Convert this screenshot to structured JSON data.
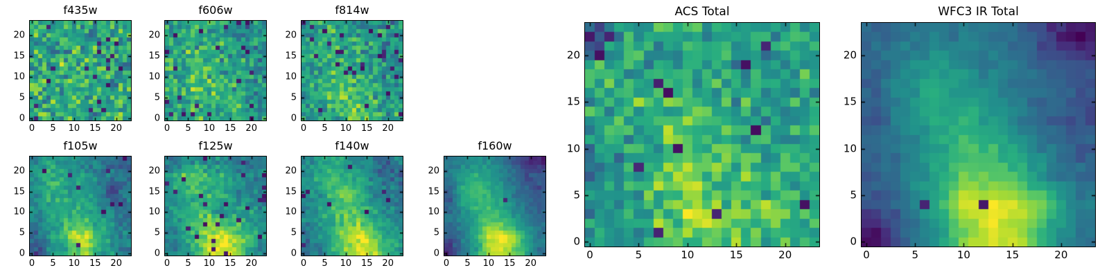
{
  "figure": {
    "background": "#ffffff",
    "description": "Matplotlib-style cutout mosaic of one source in 7 HST bands plus two stacked totals, viridis colormap"
  },
  "colormap": {
    "name": "viridis",
    "stops": [
      "#440154",
      "#472d7b",
      "#3b528b",
      "#2c728e",
      "#21918c",
      "#28ae80",
      "#5ec962",
      "#addc30",
      "#fde725"
    ]
  },
  "axes_style": {
    "frame_color": "#000000",
    "tick_color": "#000000",
    "ticks_direction": "in"
  },
  "chart_data": [
    {
      "id": "f435w",
      "type": "heatmap",
      "title": "f435w",
      "xticks": [
        0,
        5,
        10,
        15,
        20
      ],
      "yticks": [
        0,
        5,
        10,
        15,
        20
      ],
      "render_resolution": 24,
      "value_range": [
        0,
        1
      ],
      "noise_sigma": 0.17,
      "dark_outlier_prob": 0.035,
      "seed": 11,
      "intensity_grid_8x8_top_to_bottom": [
        [
          0.62,
          0.58,
          0.65,
          0.6,
          0.55,
          0.63,
          0.58,
          0.6
        ],
        [
          0.58,
          0.66,
          0.6,
          0.57,
          0.62,
          0.55,
          0.65,
          0.58
        ],
        [
          0.64,
          0.6,
          0.55,
          0.68,
          0.58,
          0.62,
          0.56,
          0.63
        ],
        [
          0.6,
          0.55,
          0.66,
          0.6,
          0.64,
          0.57,
          0.6,
          0.55
        ],
        [
          0.57,
          0.63,
          0.58,
          0.65,
          0.55,
          0.6,
          0.66,
          0.58
        ],
        [
          0.65,
          0.58,
          0.62,
          0.55,
          0.68,
          0.58,
          0.55,
          0.62
        ],
        [
          0.58,
          0.64,
          0.56,
          0.62,
          0.58,
          0.65,
          0.6,
          0.57
        ],
        [
          0.62,
          0.57,
          0.65,
          0.58,
          0.62,
          0.55,
          0.63,
          0.6
        ]
      ]
    },
    {
      "id": "f606w",
      "type": "heatmap",
      "title": "f606w",
      "xticks": [
        0,
        5,
        10,
        15,
        20
      ],
      "yticks": [
        0,
        5,
        10,
        15,
        20
      ],
      "render_resolution": 24,
      "value_range": [
        0,
        1
      ],
      "noise_sigma": 0.15,
      "dark_outlier_prob": 0.03,
      "seed": 23,
      "intensity_grid_8x8_top_to_bottom": [
        [
          0.6,
          0.55,
          0.62,
          0.58,
          0.6,
          0.5,
          0.45,
          0.55
        ],
        [
          0.62,
          0.68,
          0.58,
          0.55,
          0.6,
          0.52,
          0.48,
          0.58
        ],
        [
          0.58,
          0.65,
          0.6,
          0.62,
          0.55,
          0.58,
          0.5,
          0.45
        ],
        [
          0.6,
          0.58,
          0.65,
          0.6,
          0.62,
          0.55,
          0.58,
          0.52
        ],
        [
          0.55,
          0.62,
          0.68,
          0.65,
          0.6,
          0.62,
          0.55,
          0.5
        ],
        [
          0.6,
          0.65,
          0.7,
          0.72,
          0.65,
          0.6,
          0.58,
          0.55
        ],
        [
          0.58,
          0.62,
          0.68,
          0.7,
          0.68,
          0.62,
          0.55,
          0.52
        ],
        [
          0.6,
          0.58,
          0.65,
          0.68,
          0.62,
          0.58,
          0.6,
          0.55
        ]
      ]
    },
    {
      "id": "f814w",
      "type": "heatmap",
      "title": "f814w",
      "xticks": [
        0,
        5,
        10,
        15,
        20
      ],
      "yticks": [
        0,
        5,
        10,
        15,
        20
      ],
      "render_resolution": 24,
      "value_range": [
        0,
        1
      ],
      "noise_sigma": 0.15,
      "dark_outlier_prob": 0.035,
      "seed": 37,
      "intensity_grid_8x8_top_to_bottom": [
        [
          0.5,
          0.58,
          0.6,
          0.55,
          0.52,
          0.58,
          0.5,
          0.45
        ],
        [
          0.55,
          0.62,
          0.58,
          0.6,
          0.55,
          0.5,
          0.55,
          0.5
        ],
        [
          0.52,
          0.58,
          0.62,
          0.58,
          0.6,
          0.55,
          0.48,
          0.52
        ],
        [
          0.55,
          0.6,
          0.58,
          0.65,
          0.58,
          0.52,
          0.55,
          0.48
        ],
        [
          0.52,
          0.58,
          0.65,
          0.62,
          0.6,
          0.58,
          0.52,
          0.55
        ],
        [
          0.55,
          0.6,
          0.68,
          0.72,
          0.65,
          0.6,
          0.58,
          0.5
        ],
        [
          0.52,
          0.58,
          0.65,
          0.75,
          0.72,
          0.65,
          0.55,
          0.52
        ],
        [
          0.55,
          0.52,
          0.62,
          0.7,
          0.78,
          0.68,
          0.58,
          0.55
        ]
      ]
    },
    {
      "id": "f105w",
      "type": "heatmap",
      "title": "f105w",
      "xticks": [
        0,
        5,
        10,
        15,
        20
      ],
      "yticks": [
        0,
        5,
        10,
        15,
        20
      ],
      "render_resolution": 24,
      "value_range": [
        0,
        1
      ],
      "noise_sigma": 0.08,
      "dark_outlier_prob": 0.02,
      "seed": 51,
      "intensity_grid_8x8_top_to_bottom": [
        [
          0.5,
          0.55,
          0.52,
          0.48,
          0.45,
          0.4,
          0.35,
          0.3
        ],
        [
          0.55,
          0.65,
          0.62,
          0.55,
          0.5,
          0.42,
          0.38,
          0.42
        ],
        [
          0.5,
          0.62,
          0.6,
          0.55,
          0.52,
          0.45,
          0.2,
          0.4
        ],
        [
          0.48,
          0.58,
          0.62,
          0.6,
          0.55,
          0.48,
          0.3,
          0.38
        ],
        [
          0.45,
          0.55,
          0.6,
          0.65,
          0.62,
          0.55,
          0.45,
          0.35
        ],
        [
          0.4,
          0.5,
          0.62,
          0.75,
          0.7,
          0.58,
          0.48,
          0.42
        ],
        [
          0.35,
          0.48,
          0.6,
          0.88,
          0.95,
          0.62,
          0.5,
          0.45
        ],
        [
          0.25,
          0.45,
          0.55,
          0.75,
          0.85,
          0.6,
          0.52,
          0.4
        ]
      ]
    },
    {
      "id": "f125w",
      "type": "heatmap",
      "title": "f125w",
      "xticks": [
        0,
        5,
        10,
        15,
        20
      ],
      "yticks": [
        0,
        5,
        10,
        15,
        20
      ],
      "render_resolution": 24,
      "value_range": [
        0,
        1
      ],
      "noise_sigma": 0.09,
      "dark_outlier_prob": 0.03,
      "seed": 67,
      "intensity_grid_8x8_top_to_bottom": [
        [
          0.35,
          0.5,
          0.55,
          0.52,
          0.45,
          0.4,
          0.35,
          0.45
        ],
        [
          0.55,
          0.68,
          0.7,
          0.62,
          0.58,
          0.5,
          0.45,
          0.4
        ],
        [
          0.5,
          0.65,
          0.72,
          0.65,
          0.6,
          0.55,
          0.42,
          0.45
        ],
        [
          0.48,
          0.6,
          0.65,
          0.62,
          0.6,
          0.55,
          0.48,
          0.42
        ],
        [
          0.52,
          0.58,
          0.68,
          0.7,
          0.35,
          0.6,
          0.55,
          0.45
        ],
        [
          0.45,
          0.6,
          0.72,
          0.8,
          0.78,
          0.72,
          0.62,
          0.5
        ],
        [
          0.4,
          0.55,
          0.7,
          0.88,
          0.92,
          0.85,
          0.68,
          0.52
        ],
        [
          0.42,
          0.5,
          0.65,
          0.85,
          0.95,
          0.88,
          0.65,
          0.48
        ]
      ]
    },
    {
      "id": "f140w",
      "type": "heatmap",
      "title": "f140w",
      "xticks": [
        0,
        5,
        10,
        15,
        20
      ],
      "yticks": [
        0,
        5,
        10,
        15,
        20
      ],
      "render_resolution": 24,
      "value_range": [
        0,
        1
      ],
      "noise_sigma": 0.08,
      "dark_outlier_prob": 0.015,
      "seed": 83,
      "intensity_grid_8x8_top_to_bottom": [
        [
          0.45,
          0.55,
          0.6,
          0.55,
          0.5,
          0.45,
          0.3,
          0.42
        ],
        [
          0.5,
          0.6,
          0.65,
          0.62,
          0.58,
          0.48,
          0.35,
          0.3
        ],
        [
          0.45,
          0.55,
          0.68,
          0.72,
          0.6,
          0.5,
          0.45,
          0.4
        ],
        [
          0.42,
          0.52,
          0.65,
          0.8,
          0.7,
          0.55,
          0.48,
          0.42
        ],
        [
          0.45,
          0.55,
          0.68,
          0.78,
          0.72,
          0.6,
          0.5,
          0.45
        ],
        [
          0.4,
          0.52,
          0.62,
          0.75,
          0.8,
          0.7,
          0.55,
          0.48
        ],
        [
          0.35,
          0.5,
          0.65,
          0.85,
          0.95,
          0.85,
          0.65,
          0.5
        ],
        [
          0.4,
          0.45,
          0.6,
          0.8,
          0.92,
          0.88,
          0.7,
          0.55
        ]
      ]
    },
    {
      "id": "f160w",
      "type": "heatmap",
      "title": "f160w",
      "xticks": [
        0,
        5,
        10,
        15,
        20
      ],
      "yticks": [
        0,
        5,
        10,
        15,
        20
      ],
      "render_resolution": 24,
      "value_range": [
        0,
        1
      ],
      "noise_sigma": 0.045,
      "dark_outlier_prob": 0.006,
      "seed": 97,
      "intensity_grid_8x8_top_to_bottom": [
        [
          0.4,
          0.45,
          0.5,
          0.48,
          0.42,
          0.3,
          0.15,
          0.1
        ],
        [
          0.42,
          0.55,
          0.62,
          0.55,
          0.45,
          0.35,
          0.25,
          0.3
        ],
        [
          0.35,
          0.6,
          0.68,
          0.62,
          0.55,
          0.4,
          0.3,
          0.25
        ],
        [
          0.3,
          0.58,
          0.7,
          0.65,
          0.58,
          0.45,
          0.35,
          0.3
        ],
        [
          0.38,
          0.5,
          0.6,
          0.68,
          0.62,
          0.5,
          0.4,
          0.32
        ],
        [
          0.35,
          0.45,
          0.58,
          0.8,
          0.75,
          0.6,
          0.45,
          0.35
        ],
        [
          0.3,
          0.42,
          0.6,
          0.92,
          1.0,
          0.85,
          0.6,
          0.4
        ],
        [
          0.15,
          0.38,
          0.55,
          0.85,
          0.95,
          0.8,
          0.58,
          0.38
        ]
      ]
    },
    {
      "id": "acs_total",
      "type": "heatmap",
      "title": "ACS Total",
      "xticks": [
        0,
        5,
        10,
        15,
        20
      ],
      "yticks": [
        0,
        5,
        10,
        15,
        20
      ],
      "render_resolution": 24,
      "value_range": [
        0,
        1
      ],
      "noise_sigma": 0.14,
      "dark_outlier_prob": 0.025,
      "seed": 113,
      "intensity_grid_8x8_top_to_bottom": [
        [
          0.25,
          0.55,
          0.6,
          0.58,
          0.62,
          0.55,
          0.58,
          0.6
        ],
        [
          0.55,
          0.62,
          0.58,
          0.6,
          0.55,
          0.4,
          0.58,
          0.55
        ],
        [
          0.58,
          0.65,
          0.62,
          0.68,
          0.6,
          0.55,
          0.52,
          0.58
        ],
        [
          0.55,
          0.6,
          0.68,
          0.72,
          0.65,
          0.58,
          0.55,
          0.52
        ],
        [
          0.52,
          0.58,
          0.65,
          0.7,
          0.68,
          0.62,
          0.58,
          0.55
        ],
        [
          0.45,
          0.55,
          0.72,
          0.78,
          0.72,
          0.68,
          0.62,
          0.58
        ],
        [
          0.5,
          0.52,
          0.68,
          0.82,
          0.78,
          0.72,
          0.68,
          0.6
        ],
        [
          0.55,
          0.58,
          0.65,
          0.78,
          0.75,
          0.7,
          0.65,
          0.58
        ]
      ]
    },
    {
      "id": "wfc3_ir_total",
      "type": "heatmap",
      "title": "WFC3 IR Total",
      "xticks": [
        0,
        5,
        10,
        15,
        20
      ],
      "yticks": [
        0,
        5,
        10,
        15,
        20
      ],
      "render_resolution": 24,
      "value_range": [
        0,
        1
      ],
      "noise_sigma": 0.04,
      "dark_outlier_prob": 0.004,
      "seed": 131,
      "intensity_grid_8x8_top_to_bottom": [
        [
          0.35,
          0.38,
          0.42,
          0.4,
          0.38,
          0.32,
          0.15,
          0.05
        ],
        [
          0.32,
          0.45,
          0.55,
          0.48,
          0.42,
          0.38,
          0.3,
          0.25
        ],
        [
          0.3,
          0.48,
          0.6,
          0.55,
          0.48,
          0.38,
          0.32,
          0.28
        ],
        [
          0.28,
          0.45,
          0.58,
          0.62,
          0.55,
          0.42,
          0.3,
          0.25
        ],
        [
          0.35,
          0.42,
          0.55,
          0.7,
          0.65,
          0.52,
          0.38,
          0.3
        ],
        [
          0.3,
          0.4,
          0.55,
          0.78,
          0.75,
          0.65,
          0.45,
          0.35
        ],
        [
          0.25,
          0.38,
          0.58,
          0.92,
          1.0,
          0.88,
          0.68,
          0.4
        ],
        [
          0.05,
          0.3,
          0.5,
          0.8,
          0.95,
          0.85,
          0.58,
          0.38
        ]
      ]
    }
  ]
}
